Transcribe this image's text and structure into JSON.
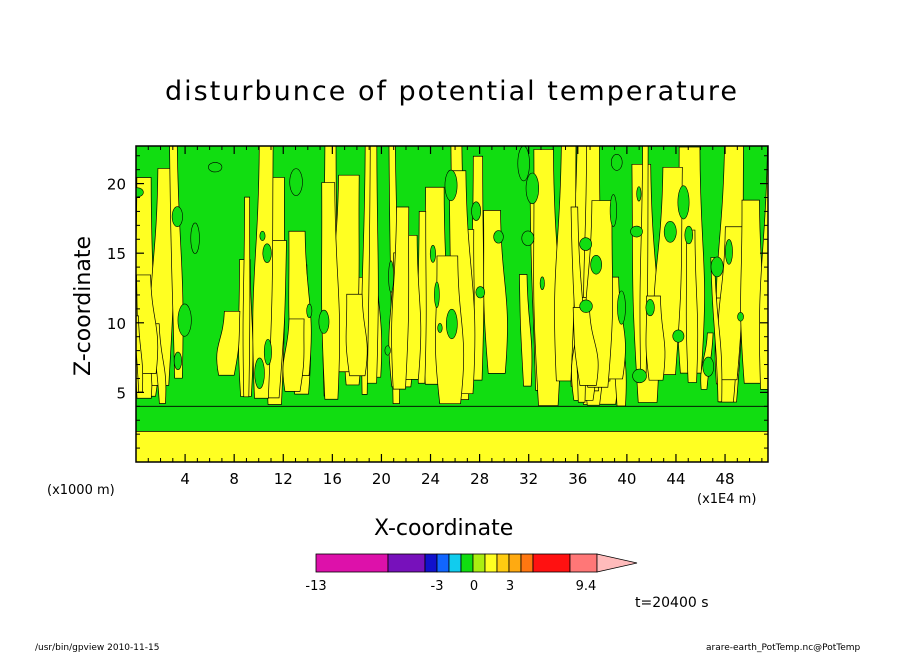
{
  "page": {
    "footer_left": "/usr/bin/gpview   2010-11-15",
    "footer_right": "arare-earth_PotTemp.nc@PotTemp",
    "time_label": "t=20400 s"
  },
  "colors": {
    "background": "#ffffff",
    "green": "#11dd11",
    "yellow": "#ffff22",
    "contour_line": "#000000"
  },
  "chart_data": {
    "type": "heatmap",
    "title": "disturbunce of potential temperature",
    "xlabel": "X-coordinate",
    "ylabel": "Z-coordinate",
    "x_unit_label": "(x1E4 m)",
    "y_unit_label": "(x1000 m)",
    "x_ticks": [
      4,
      8,
      12,
      16,
      20,
      24,
      28,
      32,
      36,
      40,
      44,
      48
    ],
    "y_ticks": [
      5,
      10,
      15,
      20
    ],
    "xlim": [
      0,
      51.5
    ],
    "ylim": [
      0,
      22.7
    ],
    "colorbar": {
      "tick_labels": [
        "-13",
        "-3",
        "0",
        "3",
        "9.4"
      ],
      "bins": [
        {
          "color": "#dd11aa"
        },
        {
          "color": "#7711bb"
        },
        {
          "color": "#1111cc"
        },
        {
          "color": "#1166ff"
        },
        {
          "color": "#11ccee"
        },
        {
          "color": "#11dd11"
        },
        {
          "color": "#aaee11"
        },
        {
          "color": "#ffff22"
        },
        {
          "color": "#ffcc11"
        },
        {
          "color": "#ffaa11"
        },
        {
          "color": "#ff7711"
        },
        {
          "color": "#ff1111"
        },
        {
          "color": "#ff7777"
        },
        {
          "color": "#ffbbbb"
        }
      ]
    },
    "bands": [
      {
        "name": "yellow surface layer",
        "z_range": [
          0,
          2.2
        ],
        "color": "yellow"
      },
      {
        "name": "green mixed layer",
        "z_range": [
          2.2,
          4.0
        ],
        "color": "green"
      },
      {
        "name": "alternating convective plumes",
        "z_range": [
          4.0,
          22.7
        ],
        "colors": [
          "green",
          "yellow"
        ]
      }
    ]
  }
}
